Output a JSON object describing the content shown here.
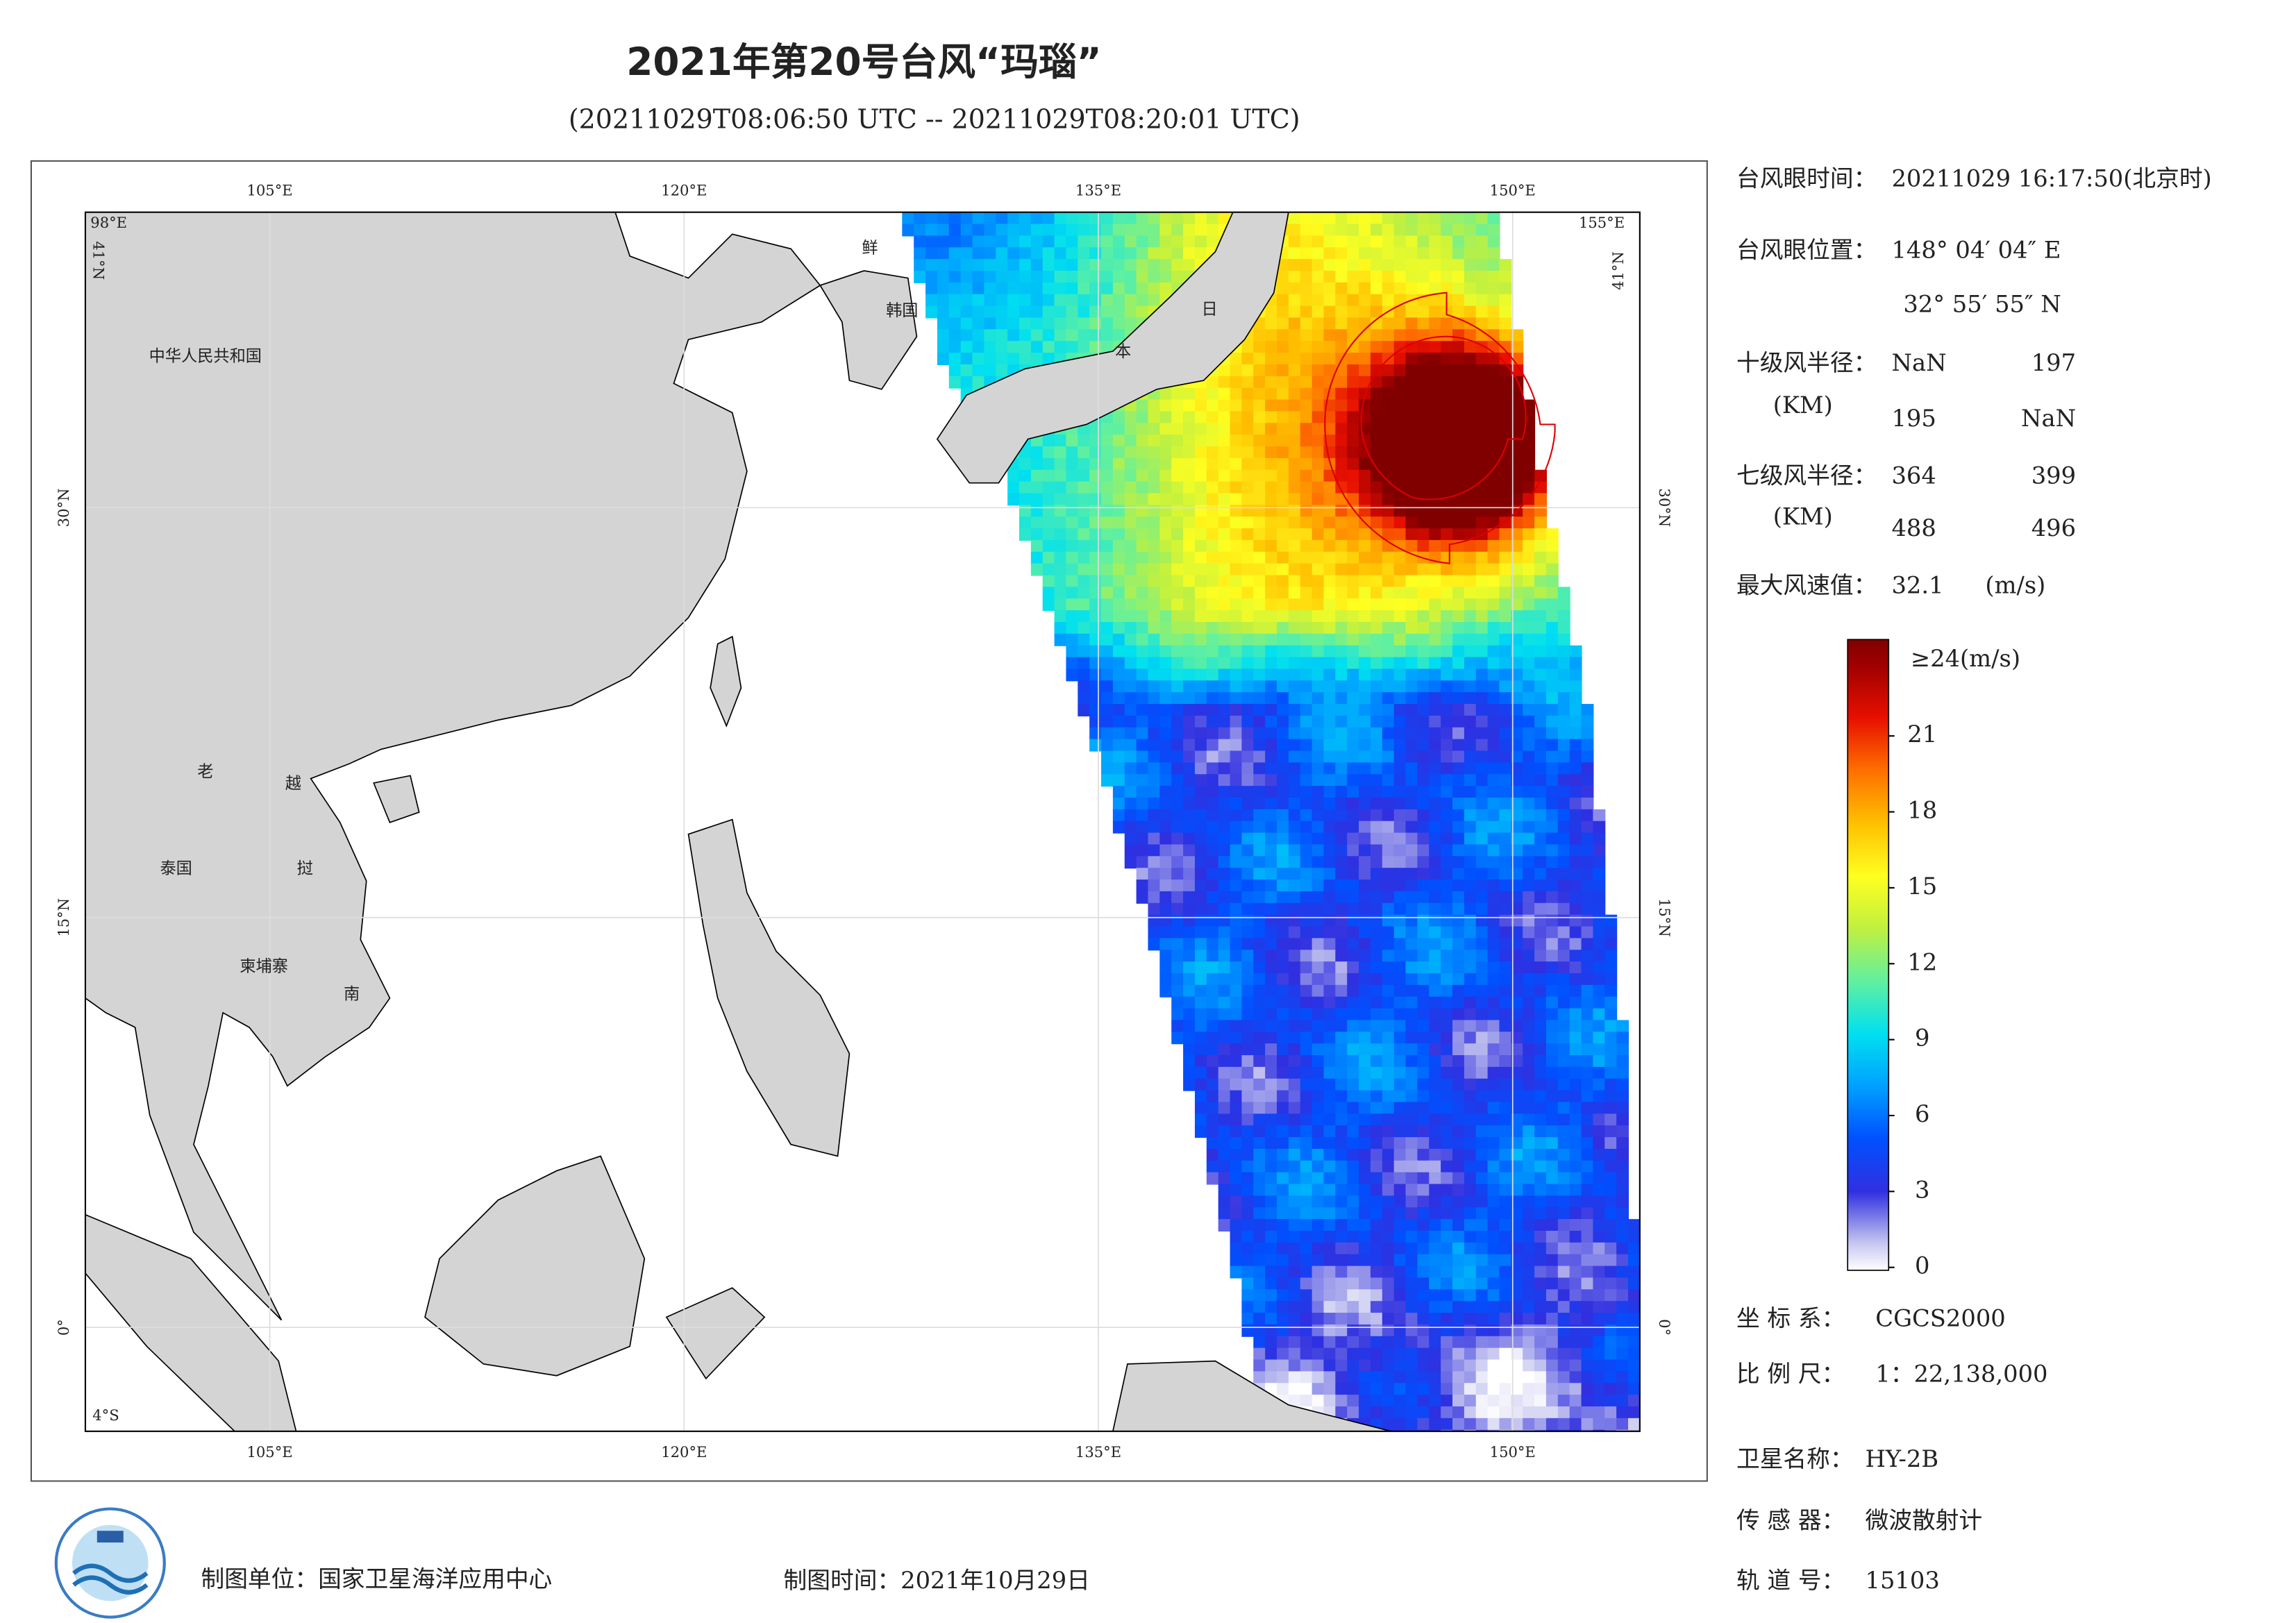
{
  "header": {
    "title": "2021年第20号台风“玛瑙”",
    "subtitle": "(20211029T08:06:50 UTC -- 20211029T08:20:01 UTC)"
  },
  "map": {
    "lon_ticks": [
      {
        "value": 105,
        "label": "105°E"
      },
      {
        "value": 120,
        "label": "120°E"
      },
      {
        "value": 135,
        "label": "135°E"
      },
      {
        "value": 150,
        "label": "150°E"
      }
    ],
    "lat_ticks": [
      {
        "value": 30,
        "label": "30°N"
      },
      {
        "value": 15,
        "label": "15°N"
      },
      {
        "value": 0,
        "label": "0°"
      }
    ],
    "corner_west": "98°E",
    "corner_east": "155°E",
    "corner_north": "41°N",
    "corner_south": "4°S",
    "places": {
      "china": "中华人民共和国",
      "laos_a": "老",
      "vietnam_a": "越",
      "thailand": "泰国",
      "laos_b": "挝",
      "cambodia": "柬埔寨",
      "vietnam_b": "南",
      "korea_n": "鲜",
      "korea_s": "韩国",
      "japan_a": "日",
      "japan_b": "本"
    }
  },
  "info": {
    "eye_time": {
      "label": "台风眼时间：",
      "value": "20211029 16:17:50(北京时)"
    },
    "eye_position": {
      "label": "台风眼位置：",
      "lon": "148° 04′ 04″ E",
      "lat": "32° 55′ 55″ N"
    },
    "r10": {
      "label": "十级风半径：",
      "unit": "(KM)",
      "values": [
        "NaN",
        197,
        195,
        "NaN"
      ]
    },
    "r7": {
      "label": "七级风半径：",
      "unit": "(KM)",
      "values": [
        364,
        399,
        488,
        496
      ]
    },
    "max_wind": {
      "label": "最大风速值：",
      "value": 32.1,
      "unit": "(m/s)"
    }
  },
  "colorbar": {
    "range": [
      0,
      24
    ],
    "ticks": [
      0,
      3,
      6,
      9,
      12,
      15,
      18,
      21
    ],
    "top_label": "≥24(m/s)"
  },
  "meta": {
    "crs": {
      "label": "坐 标 系：",
      "value": "CGCS2000"
    },
    "scale": {
      "label": "比 例 尺：",
      "value": "1：22,138,000"
    },
    "satellite": {
      "label": "卫星名称：",
      "value": "HY-2B"
    },
    "sensor": {
      "label": "传 感 器：",
      "value": "微波散射计"
    },
    "orbit": {
      "label": "轨 道 号：",
      "value": "15103"
    }
  },
  "footer": {
    "unit": "制图单位：国家卫星海洋应用中心",
    "date": "制图时间：2021年10月29日"
  }
}
